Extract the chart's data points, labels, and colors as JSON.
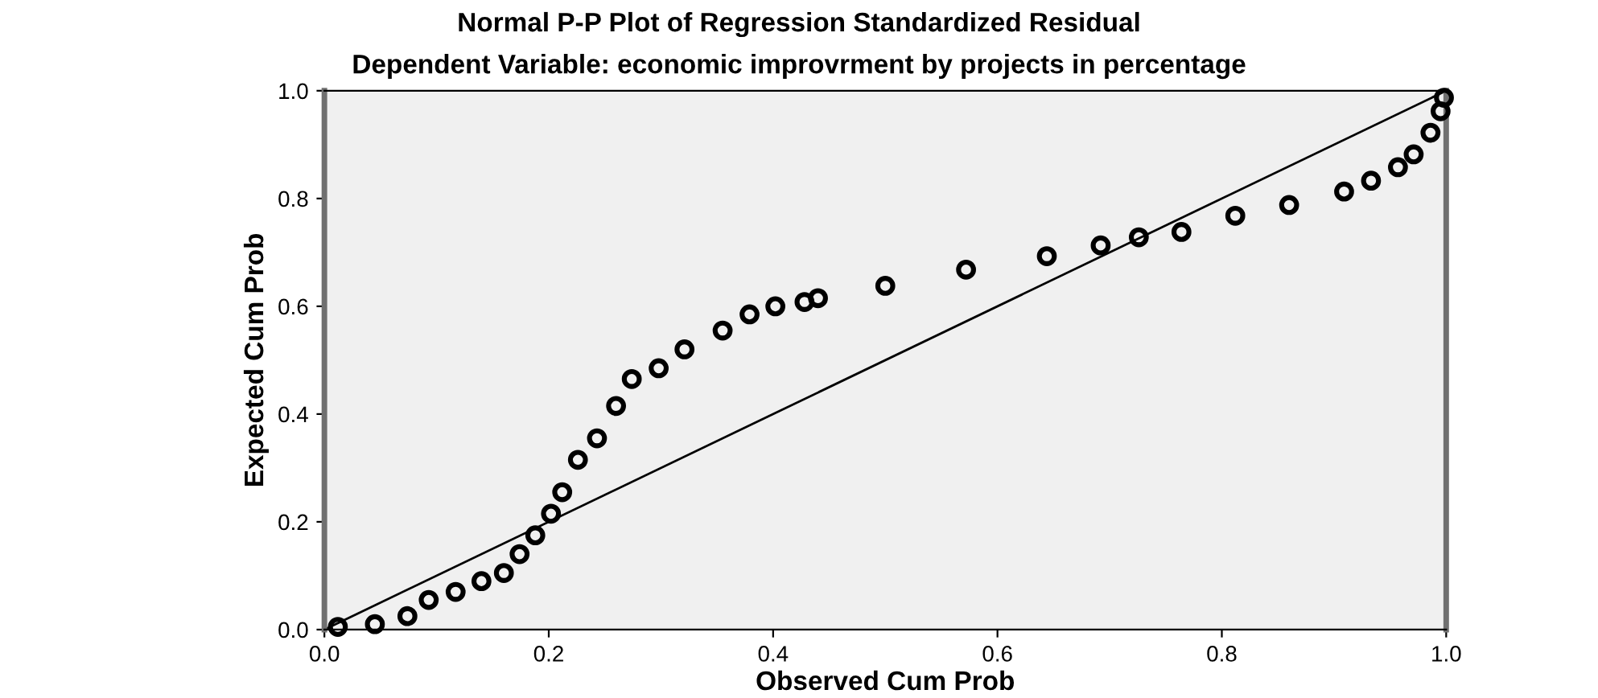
{
  "chart_data": {
    "type": "scatter",
    "title": "Normal P-P Plot of Regression Standardized Residual",
    "subtitle": "Dependent Variable: economic improvrment by projects in percentage",
    "xlabel": "Observed Cum Prob",
    "ylabel": "Expected Cum Prob",
    "series": [
      {
        "color": "#000000",
        "marker": "circle",
        "x": [
          0.012,
          0.045,
          0.074,
          0.093,
          0.117,
          0.14,
          0.16,
          0.174,
          0.188,
          0.202,
          0.212,
          0.226,
          0.243,
          0.26,
          0.274,
          0.298,
          0.321,
          0.355,
          0.379,
          0.402,
          0.428,
          0.44,
          0.5,
          0.572,
          0.644,
          0.692,
          0.726,
          0.764,
          0.812,
          0.86,
          0.909,
          0.933,
          0.957,
          0.971,
          0.986,
          0.995,
          0.998
        ],
        "values": [
          0.005,
          0.01,
          0.025,
          0.055,
          0.07,
          0.09,
          0.105,
          0.14,
          0.175,
          0.215,
          0.255,
          0.315,
          0.355,
          0.415,
          0.465,
          0.485,
          0.52,
          0.555,
          0.585,
          0.6,
          0.608,
          0.615,
          0.638,
          0.668,
          0.693,
          0.713,
          0.728,
          0.738,
          0.768,
          0.788,
          0.813,
          0.833,
          0.858,
          0.882,
          0.922,
          0.962,
          0.987
        ]
      },
      {
        "type": "line",
        "color": "#000000",
        "marker": "none",
        "line_style": "solid",
        "x": [
          0,
          1
        ],
        "values": [
          0,
          1
        ]
      }
    ],
    "xlim": [
      0,
      1
    ],
    "ylim": [
      0,
      1
    ],
    "xticks": [
      {
        "value": 0,
        "label": "0.0"
      },
      {
        "value": 0.2,
        "label": "0.2"
      },
      {
        "value": 0.4,
        "label": "0.4"
      },
      {
        "value": 0.6,
        "label": "0.6"
      },
      {
        "value": 0.8,
        "label": "0.8"
      },
      {
        "value": 1,
        "label": "1.0"
      }
    ],
    "yticks": [
      {
        "value": 0,
        "label": "0.0"
      },
      {
        "value": 0.2,
        "label": "0.2"
      },
      {
        "value": 0.4,
        "label": "0.4"
      },
      {
        "value": 0.6,
        "label": "0.6"
      },
      {
        "value": 0.8,
        "label": "0.8"
      },
      {
        "value": 1,
        "label": "1.0"
      }
    ],
    "grid": false,
    "legend": false
  }
}
